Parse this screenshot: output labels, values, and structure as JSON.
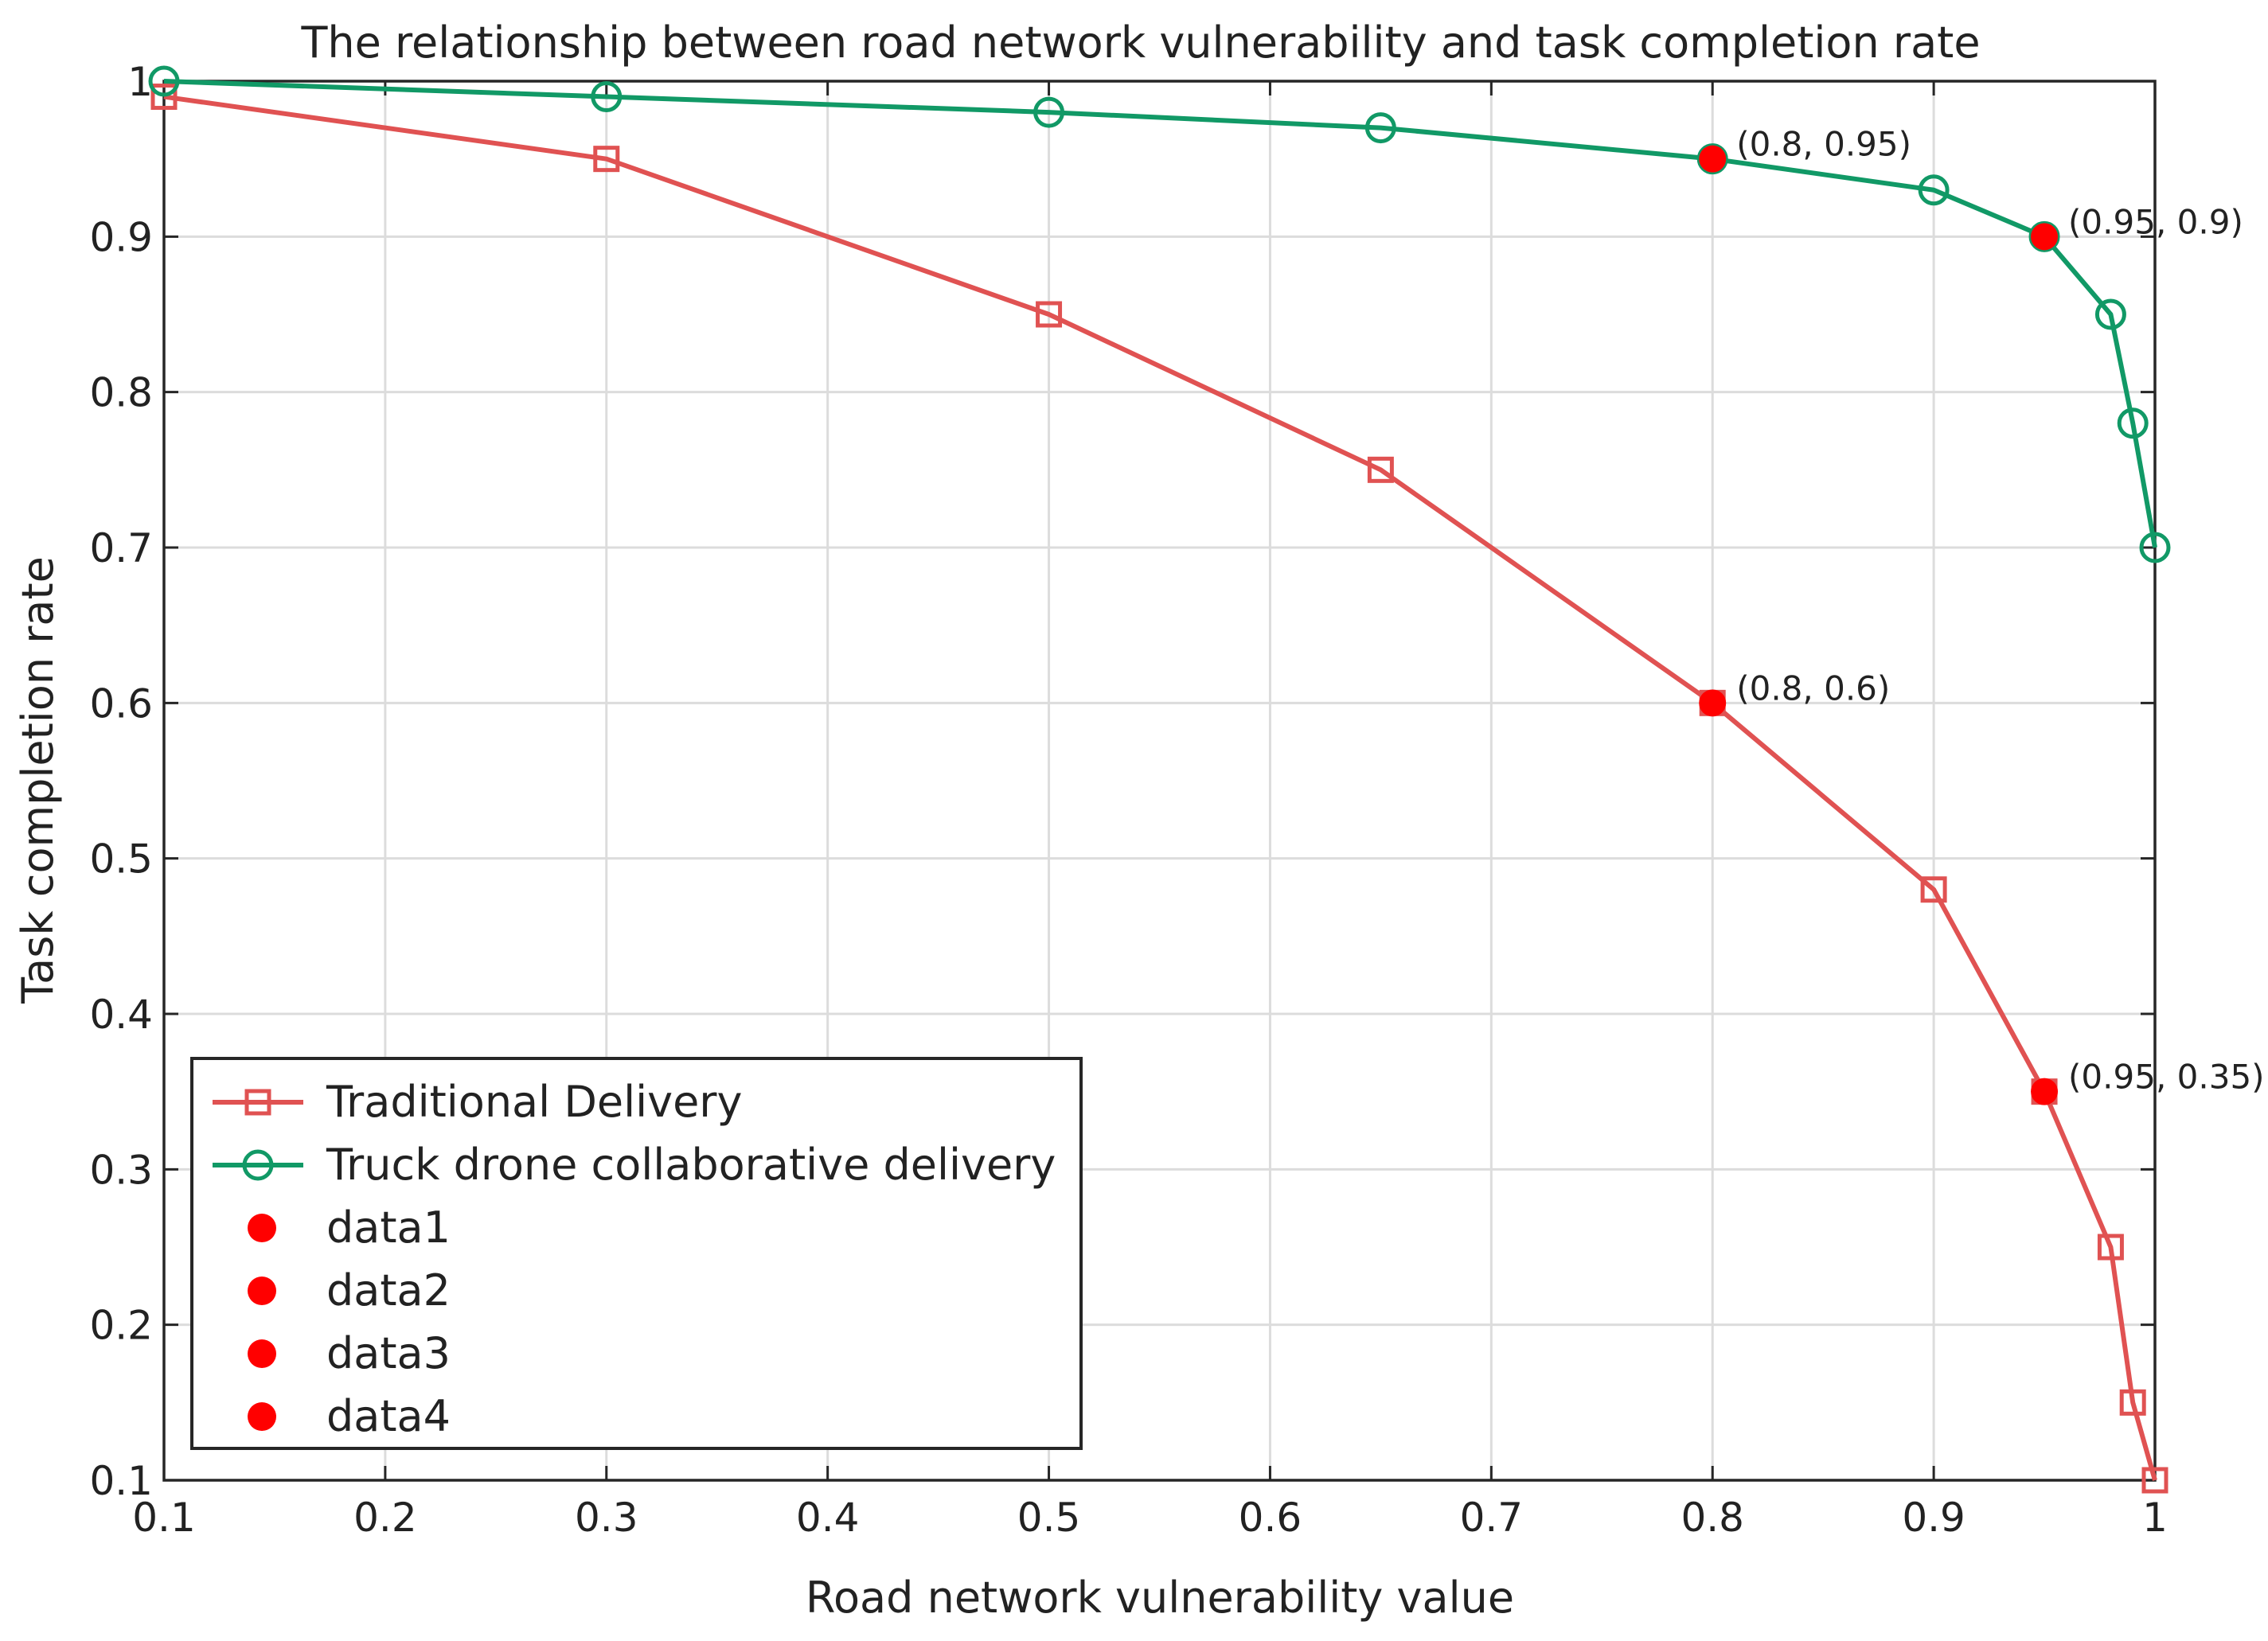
{
  "chart_data": {
    "type": "line",
    "title": "The relationship between road network vulnerability and task completion rate",
    "xlabel": "Road network vulnerability value",
    "ylabel": "Task completion rate",
    "xlim": [
      0.1,
      1.0
    ],
    "ylim": [
      0.1,
      1.0
    ],
    "xticks": [
      "0.1",
      "0.2",
      "0.3",
      "0.4",
      "0.5",
      "0.6",
      "0.7",
      "0.8",
      "0.9",
      "1"
    ],
    "yticks": [
      "0.1",
      "0.2",
      "0.3",
      "0.4",
      "0.5",
      "0.6",
      "0.7",
      "0.8",
      "0.9",
      "1"
    ],
    "grid": true,
    "legend_position": "bottom-left",
    "series": [
      {
        "name": "Traditional Delivery",
        "color": "#e05252",
        "marker": "square",
        "x": [
          0.1,
          0.3,
          0.5,
          0.65,
          0.8,
          0.9,
          0.95,
          0.98,
          0.99,
          1.0
        ],
        "y": [
          0.99,
          0.95,
          0.85,
          0.75,
          0.6,
          0.48,
          0.35,
          0.25,
          0.15,
          0.1
        ]
      },
      {
        "name": "Truck drone collaborative delivery",
        "color": "#119966",
        "marker": "circle",
        "x": [
          0.1,
          0.3,
          0.5,
          0.65,
          0.8,
          0.9,
          0.95,
          0.98,
          0.99,
          1.0
        ],
        "y": [
          1.0,
          0.99,
          0.98,
          0.97,
          0.95,
          0.93,
          0.9,
          0.85,
          0.78,
          0.7
        ]
      }
    ],
    "highlights": [
      {
        "name": "data1",
        "x": 0.8,
        "y": 0.95,
        "label": "(0.8, 0.95)",
        "color": "#ff0000"
      },
      {
        "name": "data2",
        "x": 0.95,
        "y": 0.9,
        "label": "(0.95, 0.9)",
        "color": "#ff0000"
      },
      {
        "name": "data3",
        "x": 0.8,
        "y": 0.6,
        "label": "(0.8, 0.6)",
        "color": "#ff0000"
      },
      {
        "name": "data4",
        "x": 0.95,
        "y": 0.35,
        "label": "(0.95, 0.35)",
        "color": "#ff0000"
      }
    ]
  }
}
